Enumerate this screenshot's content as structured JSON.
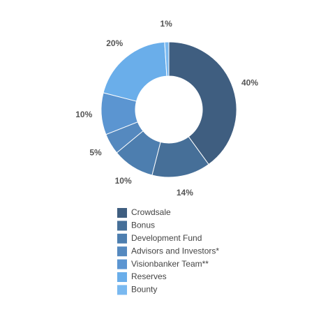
{
  "chart_data": {
    "type": "donut",
    "categories": [
      "Crowdsale",
      "Bonus",
      "Development Fund",
      "Advisors and Investors*",
      "Visionbanker Team**",
      "Reserves",
      "Bounty"
    ],
    "values": [
      40,
      14,
      10,
      5,
      10,
      20,
      1
    ],
    "value_labels": [
      "40%",
      "14%",
      "10%",
      "5%",
      "10%",
      "20%",
      "1%"
    ],
    "colors": [
      "#3f5e80",
      "#466f98",
      "#4d7eaf",
      "#5589bf",
      "#5b95d1",
      "#6aaeea",
      "#7ab9f0"
    ]
  }
}
